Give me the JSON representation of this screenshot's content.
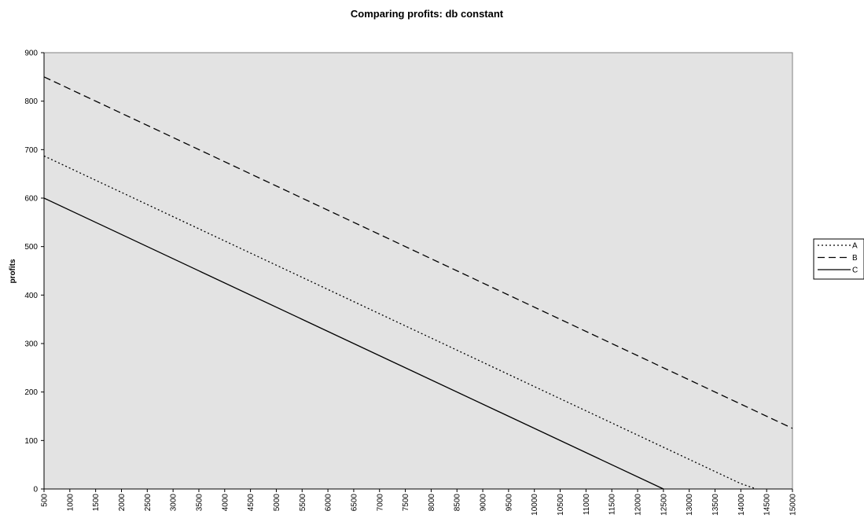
{
  "chart_data": {
    "type": "line",
    "title": "Comparing profits: db constant",
    "xlabel": "",
    "ylabel": "profits",
    "x": [
      500,
      1000,
      1500,
      2000,
      2500,
      3000,
      3500,
      4000,
      4500,
      5000,
      5500,
      6000,
      6500,
      7000,
      7500,
      8000,
      8500,
      9000,
      9500,
      10000,
      10500,
      11000,
      11500,
      12000,
      12500,
      13000,
      13500,
      14000,
      14500,
      15000
    ],
    "xlim": [
      500,
      15000
    ],
    "ylim": [
      0,
      900
    ],
    "yticks": [
      0,
      100,
      200,
      300,
      400,
      500,
      600,
      700,
      800,
      900
    ],
    "grid": false,
    "legend_position": "right",
    "plot_background": "#e3e3e3",
    "series": [
      {
        "name": "A",
        "style": "dotted",
        "color": "#000000",
        "points": [
          [
            500,
            687
          ],
          [
            14000,
            11
          ],
          [
            14300,
            0
          ]
        ]
      },
      {
        "name": "B",
        "style": "dashed",
        "color": "#000000",
        "points": [
          [
            500,
            850
          ],
          [
            15000,
            125
          ]
        ]
      },
      {
        "name": "C",
        "style": "solid",
        "color": "#000000",
        "points": [
          [
            500,
            600
          ],
          [
            12500,
            0
          ]
        ]
      }
    ]
  }
}
